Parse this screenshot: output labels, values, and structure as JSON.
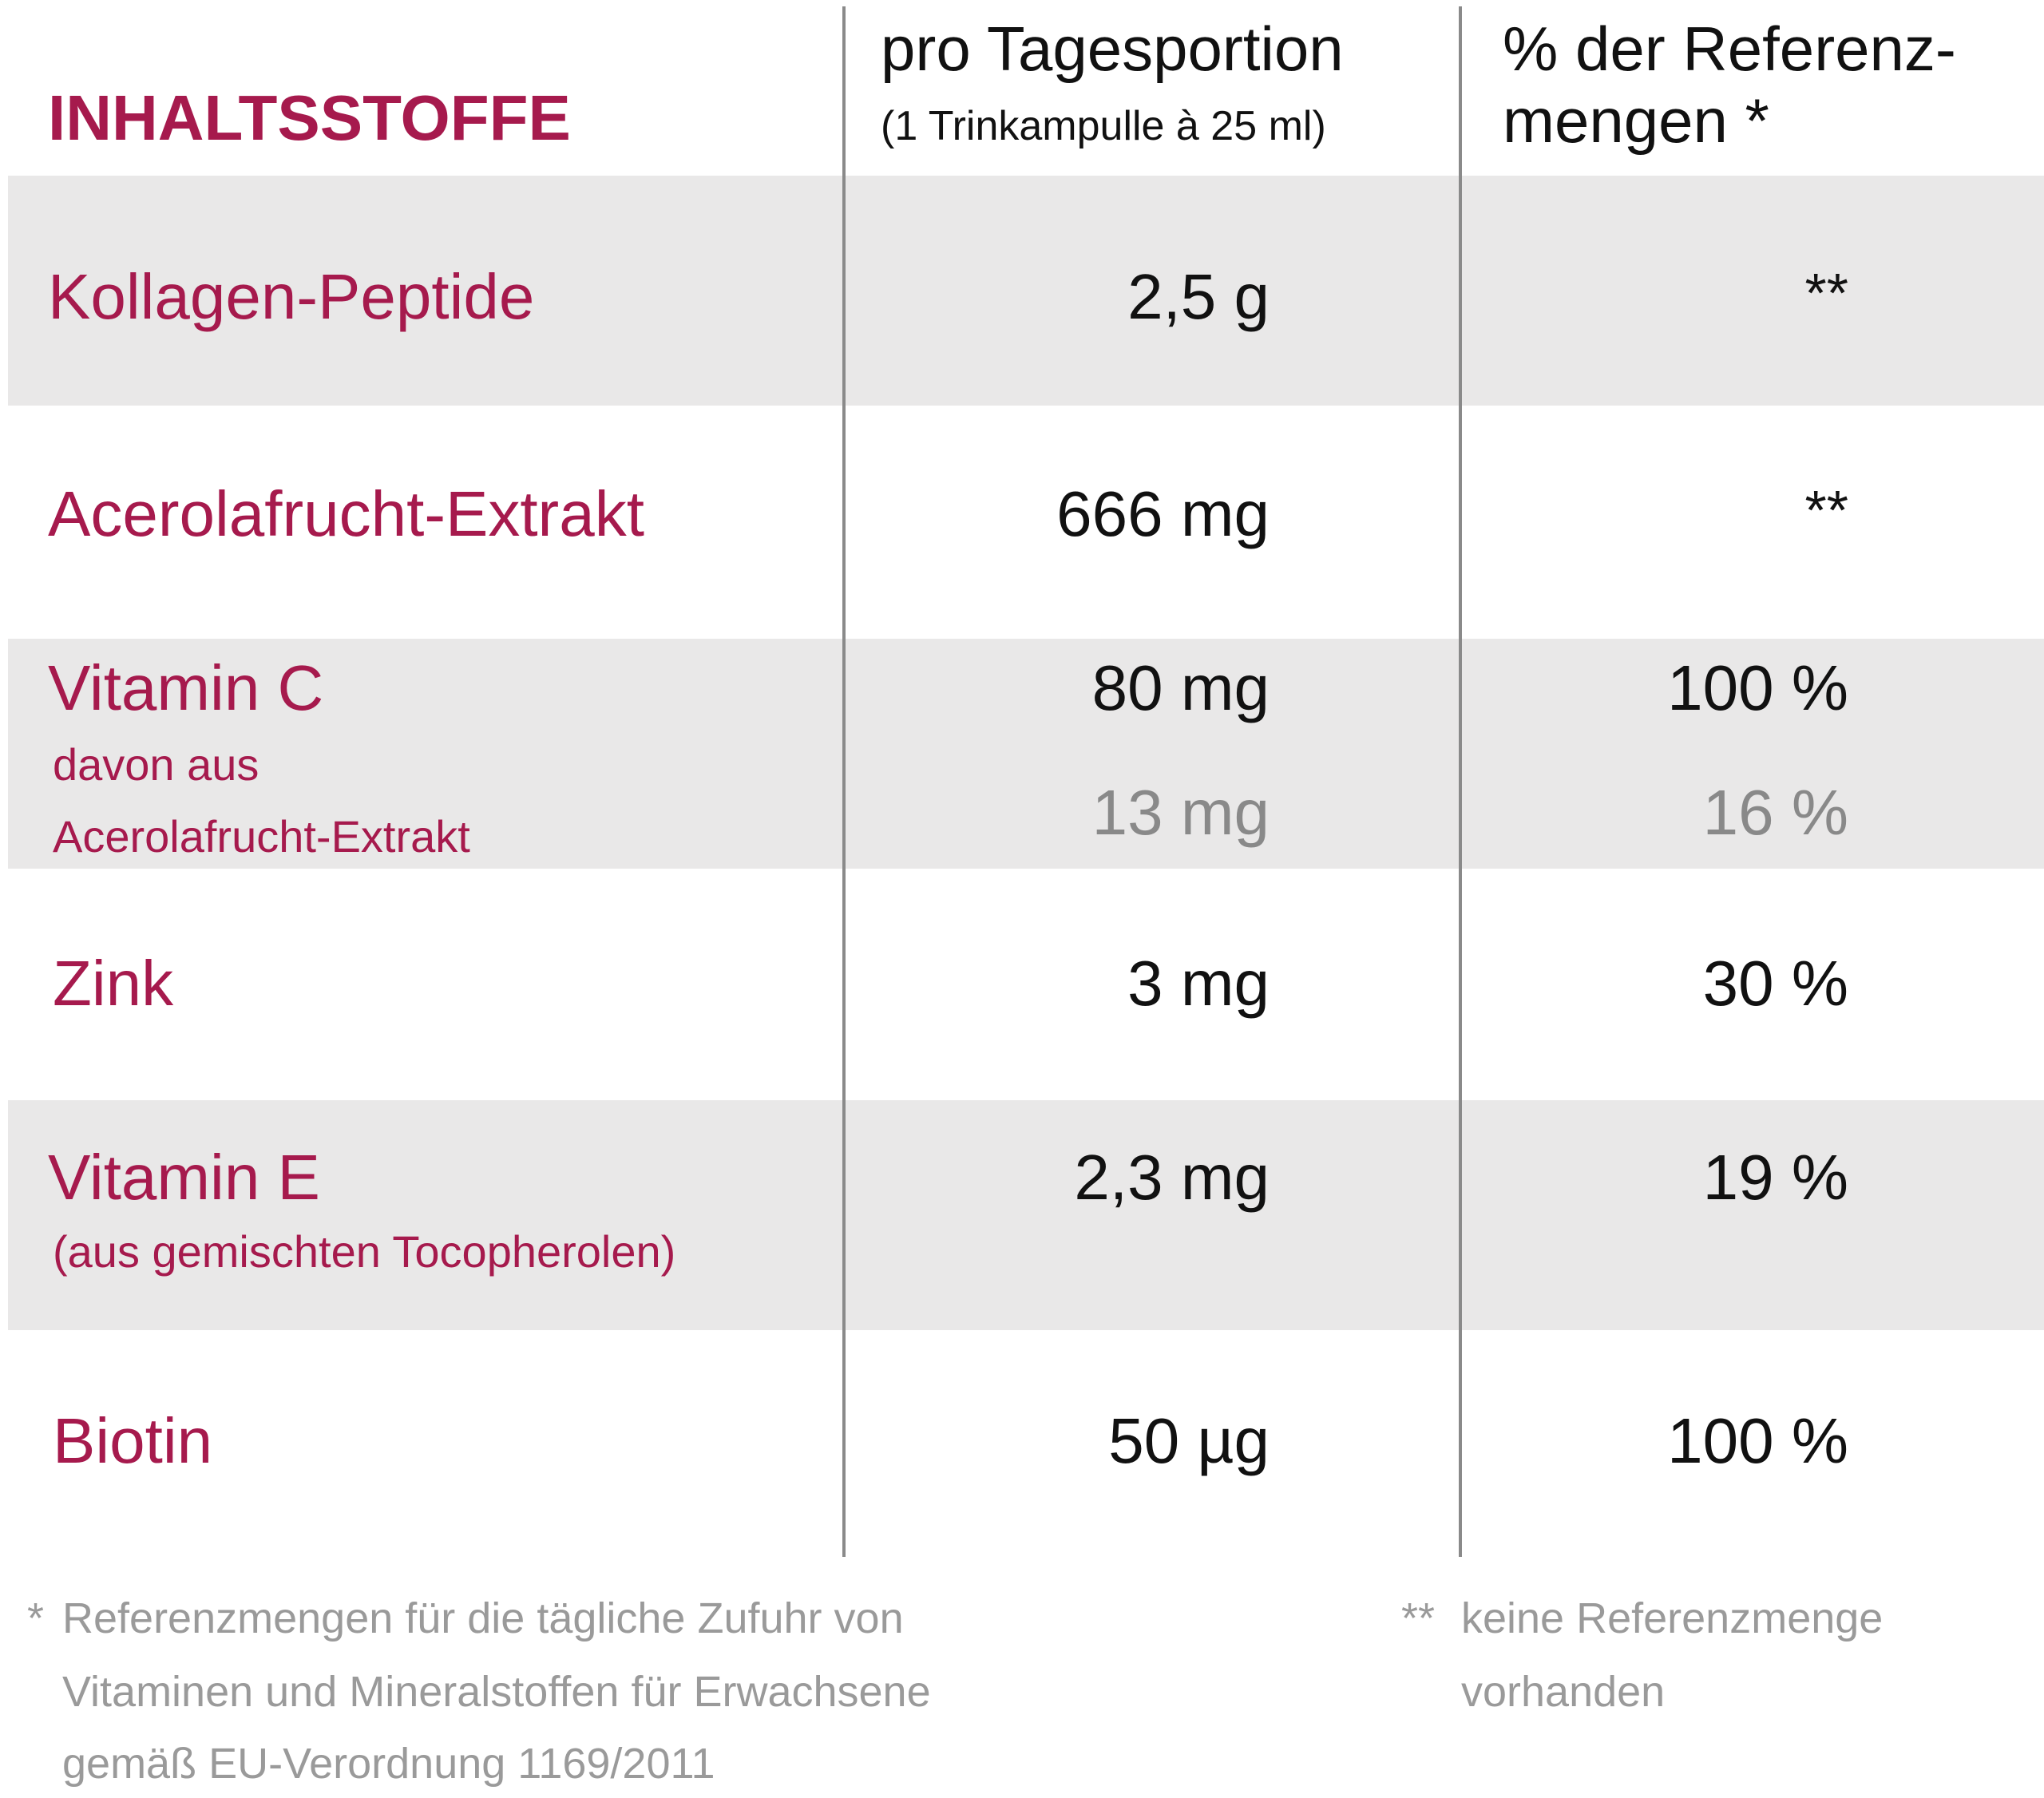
{
  "header": {
    "ingredients_label": "INHALTSSTOFFE",
    "col1_title": "pro Tagesportion",
    "col1_subtitle": "(1 Trinkampulle à 25 ml)",
    "col2_title_line1": "% der Referenz-",
    "col2_title_line2": "mengen *"
  },
  "rows": [
    {
      "name": "Kollagen-Peptide",
      "amount": "2,5 g",
      "percent": "**"
    },
    {
      "name": "Acerolafrucht-Extrakt",
      "amount": "666 mg",
      "percent": "**"
    },
    {
      "name": "Vitamin C",
      "amount": "80 mg",
      "percent": "100 %",
      "sub_line1": "davon aus",
      "sub_line2": "Acerolafrucht-Extrakt",
      "sub_amount": "13 mg",
      "sub_percent": "16 %"
    },
    {
      "name": "Zink",
      "amount": "3 mg",
      "percent": "30 %"
    },
    {
      "name": "Vitamin E",
      "sub": "(aus gemischten Tocopherolen)",
      "amount": "2,3 mg",
      "percent": "19 %"
    },
    {
      "name": "Biotin",
      "amount": "50 µg",
      "percent": "100 %"
    }
  ],
  "footnotes": {
    "star_mark": "*",
    "star_line1": "Referenzmengen für die tägliche Zufuhr von",
    "star_line2": "Vitaminen und Mineralstoffen für Erwachsene",
    "star_line3": "gemäß EU-Verordnung 1169/2011",
    "double_star_mark": "**",
    "double_star_line1": "keine Referenzmenge",
    "double_star_line2": "vorhanden"
  },
  "colors": {
    "accent": "#a61a4d",
    "band": "#e9e8e8",
    "value_text": "#111111",
    "sub_value_text": "#898989",
    "footnote_text": "#9a9a9a",
    "divider": "#8a8a8a"
  }
}
